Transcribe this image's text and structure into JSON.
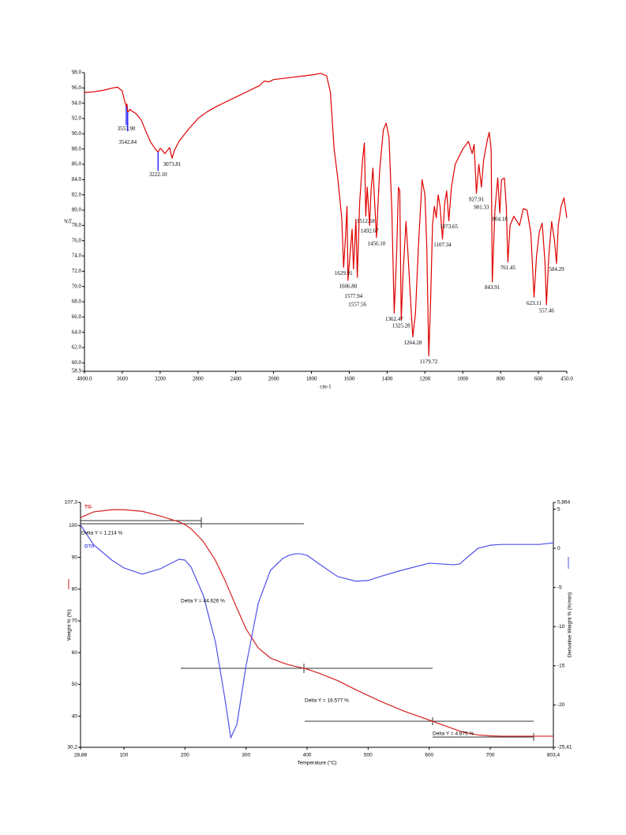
{
  "chart_data": [
    {
      "type": "line",
      "ylabel": "%T",
      "xlabel": "cm-1",
      "color": "#e00000",
      "xlim": [
        4000,
        450
      ],
      "ylim": [
        58.9,
        98.0
      ],
      "xticks": [
        {
          "value": 4000,
          "label": "4000.0"
        },
        3600,
        3200,
        2800,
        2400,
        2000,
        1800,
        1600,
        1400,
        1200,
        1000,
        800,
        600,
        {
          "value": 450,
          "label": "450.0"
        }
      ],
      "yticks": [
        58.9,
        {
          "value": 60,
          "label": "60.0"
        },
        {
          "value": 62,
          "label": "62.0"
        },
        {
          "value": 64,
          "label": "64.0"
        },
        {
          "value": 66,
          "label": "66.0"
        },
        {
          "value": 68,
          "label": "68.0"
        },
        {
          "value": 70,
          "label": "70.0"
        },
        {
          "value": 72,
          "label": "72.0"
        },
        {
          "value": 74,
          "label": "74.0"
        },
        {
          "value": 76,
          "label": "76.0"
        },
        {
          "value": 78,
          "label": "78.0"
        },
        {
          "value": 80,
          "label": "80.0"
        },
        {
          "value": 82,
          "label": "82.0"
        },
        {
          "value": 84,
          "label": "84.0"
        },
        {
          "value": 86,
          "label": "86.0"
        },
        {
          "value": 88,
          "label": "88.0"
        },
        {
          "value": 90,
          "label": "90.0"
        },
        {
          "value": 92,
          "label": "92.0"
        },
        {
          "value": 94,
          "label": "94.0"
        },
        {
          "value": 96,
          "label": "96.0"
        },
        {
          "value": 98,
          "label": "98.0"
        }
      ],
      "x": [
        4000,
        3900,
        3800,
        3700,
        3650,
        3600,
        3580,
        3557.9,
        3550,
        3542.8,
        3520,
        3500,
        3450,
        3400,
        3350,
        3300,
        3250,
        3222.1,
        3200,
        3180,
        3150,
        3100,
        3073.8,
        3050,
        3000,
        2900,
        2800,
        2700,
        2600,
        2500,
        2400,
        2300,
        2200,
        2150,
        2100,
        2050,
        2000,
        1900,
        1800,
        1750,
        1720,
        1700,
        1680,
        1660,
        1640,
        1629.9,
        1620,
        1612,
        1606.8,
        1595,
        1585,
        1577.9,
        1570,
        1565,
        1557.6,
        1545,
        1530,
        1520,
        1512.9,
        1505,
        1492.6,
        1485,
        1475,
        1456.1,
        1440,
        1420,
        1405,
        1390,
        1375,
        1362.5,
        1350,
        1340,
        1333,
        1325.3,
        1315,
        1300,
        1290,
        1280,
        1264.3,
        1250,
        1235,
        1215,
        1200,
        1190,
        1179.7,
        1170,
        1160,
        1150,
        1140,
        1130,
        1120,
        1107.3,
        1095,
        1085,
        1073.7,
        1060,
        1040,
        1000,
        970,
        950,
        940,
        927.9,
        915,
        901.3,
        890,
        870,
        860,
        850,
        843.9,
        830,
        815,
        804.2,
        795,
        780,
        770,
        761.5,
        750,
        730,
        700,
        680,
        660,
        640,
        623.1,
        610,
        595,
        580,
        565,
        557.5,
        545,
        530,
        515,
        504.3,
        495,
        480,
        465,
        450
      ],
      "values": [
        95.4,
        95.5,
        95.7,
        96.0,
        96.1,
        95.6,
        94.5,
        93.6,
        93.9,
        92.8,
        93.2,
        93,
        92.6,
        91.8,
        90.3,
        88.9,
        88,
        87.6,
        88.1,
        87.9,
        87.4,
        88.2,
        86.8,
        87.8,
        89,
        90.6,
        92,
        92.9,
        93.6,
        94.2,
        94.8,
        95.4,
        96,
        96.3,
        96.9,
        96.8,
        97.1,
        97.4,
        97.7,
        97.9,
        97.6,
        95.5,
        88,
        84,
        79,
        72.5,
        76.5,
        80.5,
        70.8,
        74.5,
        77.5,
        72.3,
        76,
        78.8,
        71.2,
        81,
        86.5,
        88.8,
        79.2,
        83,
        78,
        82.5,
        85.5,
        76.4,
        85,
        90.5,
        91.4,
        89.5,
        80,
        66.5,
        74,
        83,
        82.5,
        65.6,
        72,
        78.5,
        74.5,
        70,
        63.4,
        66.5,
        75,
        84,
        82,
        75,
        60.9,
        68,
        78,
        80.5,
        79,
        82,
        80.5,
        76.2,
        81,
        82.5,
        78.6,
        83,
        86,
        88,
        89,
        87.4,
        88.6,
        82.2,
        86,
        83,
        86.5,
        89.2,
        90.2,
        88,
        70.6,
        80,
        84.2,
        79.6,
        84,
        84.2,
        80.5,
        73.2,
        78,
        79.2,
        78,
        80.2,
        80,
        77,
        68.6,
        74,
        77.2,
        78.3,
        73,
        67.6,
        74,
        78.5,
        76,
        73,
        78,
        80.5,
        81.6,
        79
      ],
      "peaks": [
        {
          "value": 3557.9,
          "label": "3557.90",
          "color": "#0000ff"
        },
        {
          "value": 3542.84,
          "color": "#0000ff"
        },
        {
          "value": 3222.1,
          "label": "3222.10",
          "color": "#0000ff"
        },
        3073.81,
        1629.91,
        {
          "value": 1606.8,
          "label": "1606.80"
        },
        1577.94,
        1557.56,
        1512.58,
        1492.67,
        {
          "value": 1456.1,
          "label": "1456.10"
        },
        1362.47,
        1325.28,
        1264.28,
        1179.72,
        1107.34,
        1073.65,
        927.91,
        901.33,
        843.91,
        804.18,
        761.45,
        623.11,
        557.46,
        504.29
      ]
    },
    {
      "type": "line",
      "xlabel": "Temperature (°C)",
      "ylabel": "Weight % (%)",
      "y2label": "Derivative Weight % (%/min)",
      "xlim": [
        28.88,
        803.4
      ],
      "ylim": [
        30.2,
        107.3
      ],
      "y2lim": [
        -25.41,
        5.864
      ],
      "xticks": [
        {
          "value": 28.88,
          "label": "28,88"
        },
        100,
        200,
        300,
        400,
        500,
        600,
        700,
        {
          "value": 803.4,
          "label": "803,4"
        }
      ],
      "yticks": [
        {
          "value": 107.3,
          "label": "107,3"
        },
        100,
        90,
        80,
        70,
        60,
        50,
        40,
        {
          "value": 30.2,
          "label": "30,2"
        }
      ],
      "y2ticks": [
        {
          "value": 5.864,
          "label": "5,864"
        },
        5,
        0,
        -5,
        -10,
        -15,
        -20,
        {
          "value": -25.41,
          "label": "-25,41"
        }
      ],
      "x": [
        28.88,
        50,
        80,
        100,
        130,
        160,
        190,
        200,
        210,
        230,
        250,
        265,
        275,
        285,
        300,
        320,
        340,
        360,
        370,
        380,
        390,
        400,
        420,
        450,
        480,
        500,
        520,
        550,
        560,
        600,
        640,
        650,
        660,
        680,
        700,
        720,
        750,
        780,
        803.4
      ],
      "series": [
        {
          "name": "TG",
          "color": "#d62020",
          "values": [
            102.5,
            104.3,
            105,
            105,
            104.5,
            103,
            101.2,
            100.3,
            99,
            95,
            89,
            83,
            78.5,
            74,
            67.5,
            61.5,
            58.3,
            56.8,
            56.2,
            55.7,
            55.3,
            54.8,
            53.5,
            51.2,
            48.3,
            46.5,
            44.7,
            42.3,
            41.5,
            38.8,
            36,
            35.3,
            34.8,
            34.1,
            33.8,
            33.7,
            33.7,
            33.7,
            33.7
          ]
        },
        {
          "name": "DTA",
          "color": "#5050e8",
          "axis": "y2",
          "values": [
            3,
            0.5,
            -1.5,
            -2.5,
            -3.3,
            -2.6,
            -1.4,
            -1.5,
            -2.4,
            -6,
            -12,
            -19,
            -24.2,
            -22.5,
            -15,
            -7,
            -2.8,
            -1.3,
            -0.9,
            -0.7,
            -0.7,
            -0.9,
            -2,
            -3.6,
            -4.2,
            -4.1,
            -3.6,
            -2.9,
            -2.7,
            -1.9,
            -2.1,
            -2,
            -1.3,
            0,
            0.4,
            0.5,
            0.5,
            0.5,
            0.7
          ]
        }
      ],
      "annotations": [
        "Delta Y = 1.214 %",
        "Delta Y = 44.626 %",
        "Delta Y = 16.577 %",
        "Delta Y = 4.875 %"
      ]
    }
  ]
}
